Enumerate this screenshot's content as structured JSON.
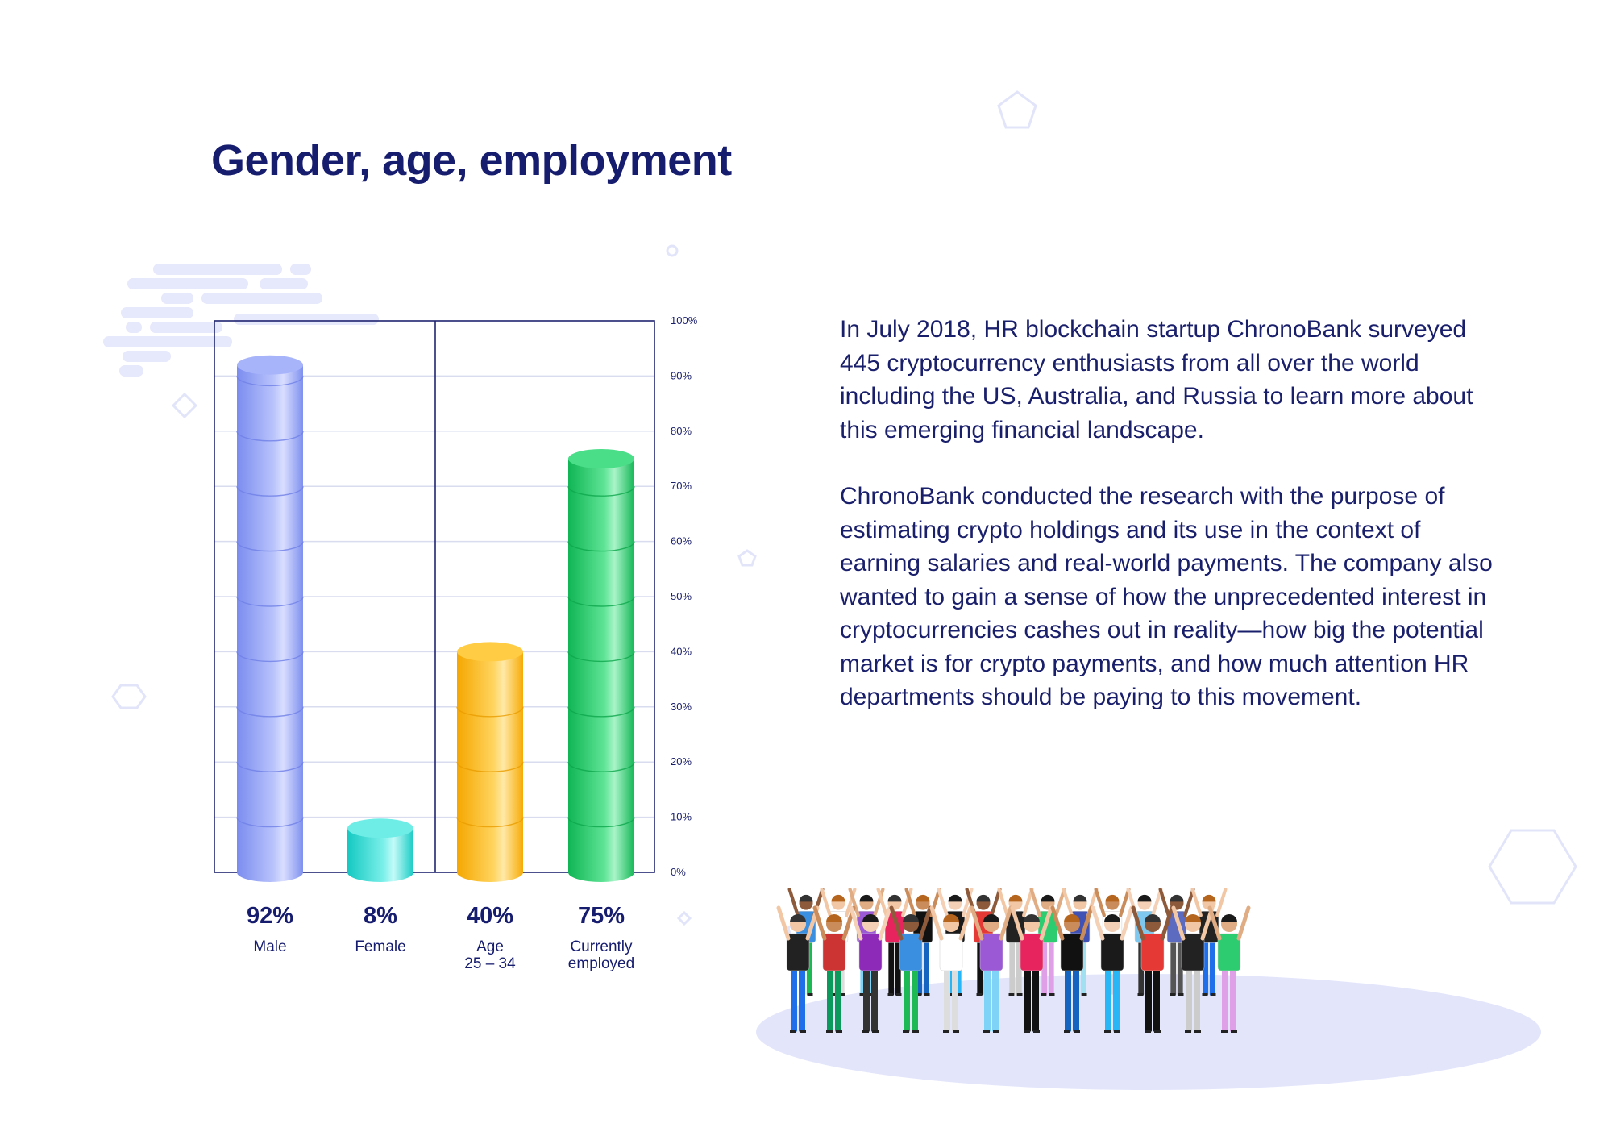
{
  "title": "Gender, age, employment",
  "body": {
    "paragraphs": [
      "In July 2018, HR blockchain startup ChronoBank surveyed 445 cryptocurrency enthusiasts from all over the world including the US, Australia, and Russia to learn more about this emerging financial landscape.",
      "ChronoBank conducted the research with the purpose of estimating crypto holdings and its use in the context of earning salaries and real-world payments. The company also wanted to gain a sense of how the unprecedented interest in cryptocurrencies cashes out in reality—how big the potential market is for crypto payments, and how much attention HR departments should be paying to this movement."
    ]
  },
  "chart_data": {
    "type": "bar",
    "categories": [
      "Male",
      "Female",
      "Age 25 – 34",
      "Currently employed"
    ],
    "category_lines": [
      [
        "Male"
      ],
      [
        "Female"
      ],
      [
        "Age",
        "25 – 34"
      ],
      [
        "Currently",
        "employed"
      ]
    ],
    "values": [
      92,
      8,
      40,
      75
    ],
    "value_labels": [
      "92%",
      "8%",
      "40%",
      "75%"
    ],
    "ylim": [
      0,
      100
    ],
    "yticks": [
      0,
      10,
      20,
      30,
      40,
      50,
      60,
      70,
      80,
      90,
      100
    ],
    "ytick_labels": [
      "0%",
      "10%",
      "20%",
      "30%",
      "40%",
      "50%",
      "60%",
      "70%",
      "80%",
      "90%",
      "100%"
    ],
    "y_axis_position": "right",
    "grid": true,
    "colors": [
      "#8fa0f5",
      "#2ed9d3",
      "#ffbb1f",
      "#1fc661"
    ],
    "style": "3d-cylinder"
  }
}
